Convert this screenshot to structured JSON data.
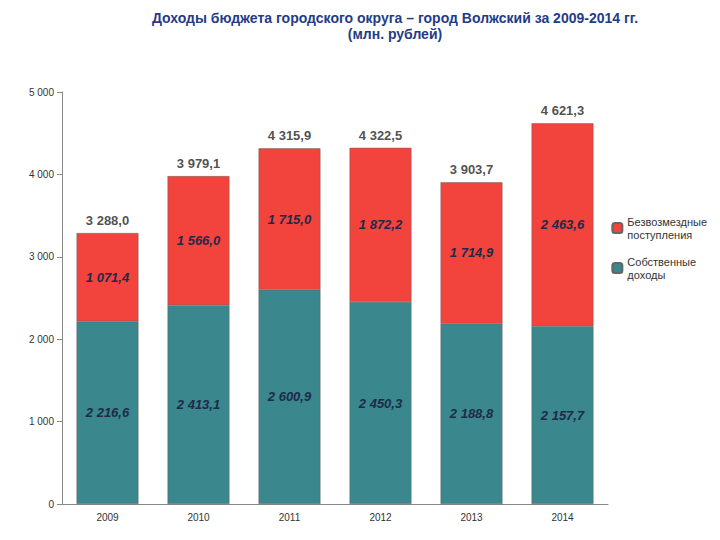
{
  "chart_data": {
    "type": "bar",
    "title": "Доходы бюджета городского округа – город Волжский за 2009-2014 гг.",
    "subtitle": "(млн. рублей)",
    "categories": [
      "2009",
      "2010",
      "2011",
      "2012",
      "2013",
      "2014"
    ],
    "series": [
      {
        "name": "Собственные доходы",
        "color": "#3a878d",
        "values": [
          2216.6,
          2413.1,
          2600.9,
          2450.3,
          2188.8,
          2157.7
        ],
        "value_labels": [
          "2 216,6",
          "2 413,1",
          "2 600,9",
          "2 450,3",
          "2 188,8",
          "2 157,7"
        ]
      },
      {
        "name": "Безвозмездные поступления",
        "color": "#f2433c",
        "values": [
          1071.4,
          1566.0,
          1715.0,
          1872.2,
          1714.9,
          2463.6
        ],
        "value_labels": [
          "1 071,4",
          "1 566,0",
          "1 715,0",
          "1 872,2",
          "1 714,9",
          "2 463,6"
        ]
      }
    ],
    "totals": {
      "values": [
        3288.0,
        3979.1,
        4315.9,
        4322.5,
        3903.7,
        4621.3
      ],
      "value_labels": [
        "3 288,0",
        "3 979,1",
        "4 315,9",
        "4 322,5",
        "3 903,7",
        "4 621,3"
      ]
    },
    "ylim": [
      0,
      5000
    ],
    "yticks": [
      0,
      {
        "value": 1000,
        "label": "1 000"
      },
      {
        "value": 2000,
        "label": "2 000"
      },
      {
        "value": 3000,
        "label": "3 000"
      },
      {
        "value": 4000,
        "label": "4 000"
      },
      {
        "value": 5000,
        "label": "5 000"
      }
    ],
    "stacked": true,
    "data_labels": true,
    "legend": "right",
    "grid": false
  }
}
